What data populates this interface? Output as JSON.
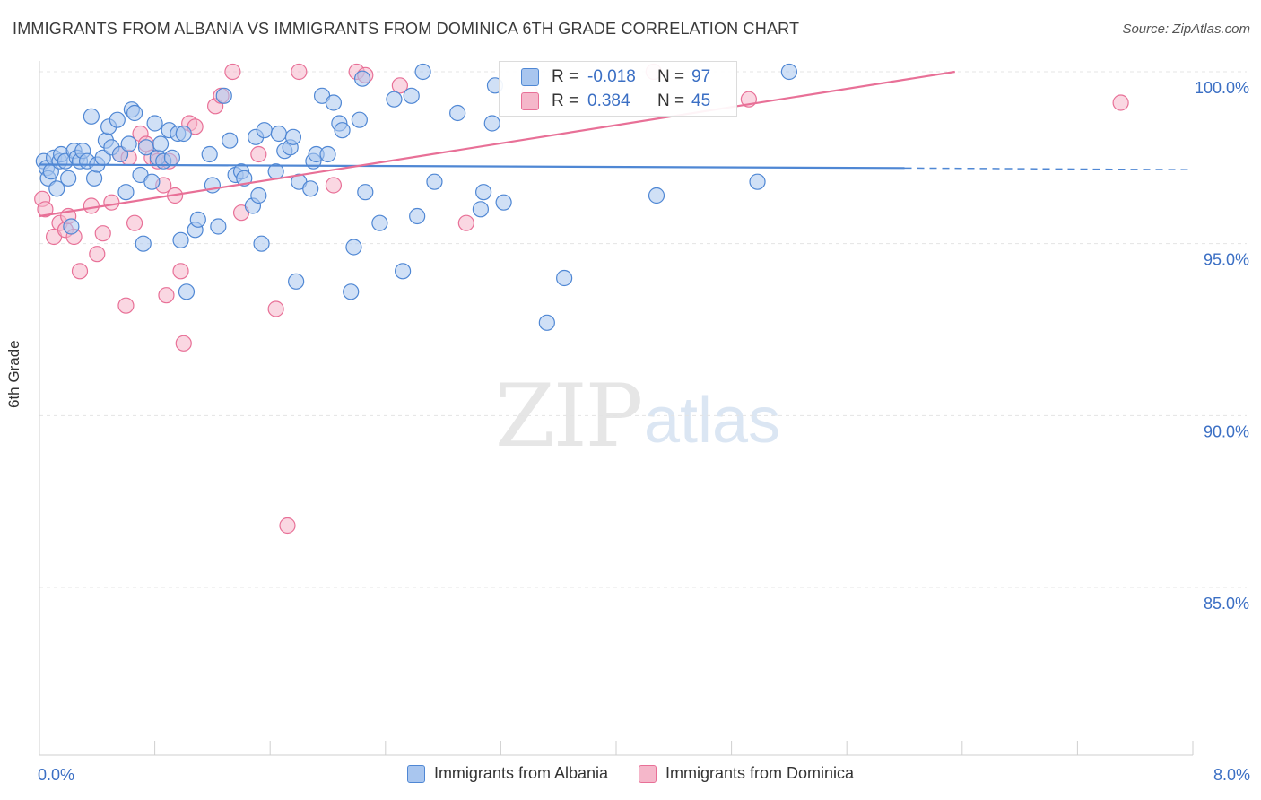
{
  "title": "IMMIGRANTS FROM ALBANIA VS IMMIGRANTS FROM DOMINICA 6TH GRADE CORRELATION CHART",
  "source": "Source: ZipAtlas.com",
  "watermark": {
    "zip": "ZIP",
    "atlas": "atlas"
  },
  "colors": {
    "blue": "#4f87d4",
    "blue_fill": "#a9c6ef",
    "pink": "#e87097",
    "pink_fill": "#f5b7ca",
    "tick_label": "#3b6fc4",
    "grid": "#e4e4e4"
  },
  "stats": [
    {
      "r_label": "R =",
      "r_value": "-0.018",
      "n_label": "N =",
      "n_value": "97"
    },
    {
      "r_label": "R =",
      "r_value": "0.384",
      "n_label": "N =",
      "n_value": "45"
    }
  ],
  "chart_data": {
    "type": "scatter",
    "title": "IMMIGRANTS FROM ALBANIA VS IMMIGRANTS FROM DOMINICA 6TH GRADE CORRELATION CHART",
    "xlabel": "",
    "ylabel": "6th Grade",
    "xlim": [
      0,
      8
    ],
    "ylim": [
      80.5,
      100.8
    ],
    "x_tick_labels": [
      {
        "value": 0,
        "label": "0.0%"
      },
      {
        "value": 8,
        "label": "8.0%"
      }
    ],
    "y_tick_labels": [
      {
        "value": 100,
        "label": "100.0%"
      },
      {
        "value": 95,
        "label": "95.0%"
      },
      {
        "value": 90,
        "label": "90.0%"
      },
      {
        "value": 85,
        "label": "85.0%"
      }
    ],
    "grid": true,
    "legend_position": "bottom",
    "series": [
      {
        "name": "Immigrants from Albania",
        "color": "#4f87d4",
        "points": [
          [
            0.03,
            97.4
          ],
          [
            0.05,
            97.2
          ],
          [
            0.06,
            96.9
          ],
          [
            0.08,
            97.1
          ],
          [
            0.1,
            97.5
          ],
          [
            0.12,
            96.6
          ],
          [
            0.14,
            97.4
          ],
          [
            0.15,
            97.6
          ],
          [
            0.18,
            97.4
          ],
          [
            0.2,
            96.9
          ],
          [
            0.22,
            95.5
          ],
          [
            0.24,
            97.7
          ],
          [
            0.26,
            97.5
          ],
          [
            0.28,
            97.4
          ],
          [
            0.3,
            97.7
          ],
          [
            0.33,
            97.4
          ],
          [
            0.36,
            98.7
          ],
          [
            0.38,
            96.9
          ],
          [
            0.4,
            97.3
          ],
          [
            0.44,
            97.5
          ],
          [
            0.46,
            98.0
          ],
          [
            0.48,
            98.4
          ],
          [
            0.5,
            97.8
          ],
          [
            0.54,
            98.6
          ],
          [
            0.56,
            97.6
          ],
          [
            0.6,
            96.5
          ],
          [
            0.62,
            97.9
          ],
          [
            0.64,
            98.9
          ],
          [
            0.66,
            98.8
          ],
          [
            0.7,
            97.0
          ],
          [
            0.72,
            95.0
          ],
          [
            0.74,
            97.8
          ],
          [
            0.78,
            96.8
          ],
          [
            0.8,
            98.5
          ],
          [
            0.82,
            97.5
          ],
          [
            0.84,
            97.9
          ],
          [
            0.86,
            97.4
          ],
          [
            0.9,
            98.3
          ],
          [
            0.92,
            97.5
          ],
          [
            0.96,
            98.2
          ],
          [
            0.98,
            95.1
          ],
          [
            1.0,
            98.2
          ],
          [
            1.02,
            93.6
          ],
          [
            1.08,
            95.4
          ],
          [
            1.1,
            95.7
          ],
          [
            1.18,
            97.6
          ],
          [
            1.2,
            96.7
          ],
          [
            1.24,
            95.5
          ],
          [
            1.28,
            99.3
          ],
          [
            1.32,
            98.0
          ],
          [
            1.36,
            97.0
          ],
          [
            1.4,
            97.1
          ],
          [
            1.42,
            96.9
          ],
          [
            1.48,
            96.1
          ],
          [
            1.5,
            98.1
          ],
          [
            1.52,
            96.4
          ],
          [
            1.54,
            95.0
          ],
          [
            1.56,
            98.3
          ],
          [
            1.64,
            97.1
          ],
          [
            1.66,
            98.2
          ],
          [
            1.7,
            97.7
          ],
          [
            1.74,
            97.8
          ],
          [
            1.76,
            98.1
          ],
          [
            1.78,
            93.9
          ],
          [
            1.8,
            96.8
          ],
          [
            1.88,
            96.6
          ],
          [
            1.9,
            97.4
          ],
          [
            1.92,
            97.6
          ],
          [
            1.96,
            99.3
          ],
          [
            2.0,
            97.6
          ],
          [
            2.04,
            99.1
          ],
          [
            2.08,
            98.5
          ],
          [
            2.1,
            98.3
          ],
          [
            2.16,
            93.6
          ],
          [
            2.18,
            94.9
          ],
          [
            2.22,
            98.6
          ],
          [
            2.24,
            99.8
          ],
          [
            2.26,
            96.5
          ],
          [
            2.36,
            95.6
          ],
          [
            2.46,
            99.2
          ],
          [
            2.52,
            94.2
          ],
          [
            2.58,
            99.3
          ],
          [
            2.62,
            95.8
          ],
          [
            2.66,
            100.0
          ],
          [
            2.74,
            96.8
          ],
          [
            2.9,
            98.8
          ],
          [
            3.06,
            96.0
          ],
          [
            3.08,
            96.5
          ],
          [
            3.14,
            98.5
          ],
          [
            3.16,
            99.6
          ],
          [
            3.22,
            96.2
          ],
          [
            3.52,
            92.7
          ],
          [
            3.64,
            94.0
          ],
          [
            4.28,
            96.4
          ],
          [
            4.98,
            96.8
          ],
          [
            5.2,
            100.0
          ]
        ]
      },
      {
        "name": "Immigrants from Dominica",
        "color": "#e87097",
        "points": [
          [
            0.02,
            96.3
          ],
          [
            0.04,
            96.0
          ],
          [
            0.1,
            95.2
          ],
          [
            0.14,
            95.6
          ],
          [
            0.18,
            95.4
          ],
          [
            0.2,
            95.8
          ],
          [
            0.24,
            95.2
          ],
          [
            0.28,
            94.2
          ],
          [
            0.36,
            96.1
          ],
          [
            0.4,
            94.7
          ],
          [
            0.44,
            95.3
          ],
          [
            0.5,
            96.2
          ],
          [
            0.56,
            97.6
          ],
          [
            0.6,
            93.2
          ],
          [
            0.62,
            97.5
          ],
          [
            0.66,
            95.6
          ],
          [
            0.7,
            98.2
          ],
          [
            0.74,
            97.9
          ],
          [
            0.78,
            97.5
          ],
          [
            0.82,
            97.4
          ],
          [
            0.86,
            96.7
          ],
          [
            0.88,
            93.5
          ],
          [
            0.9,
            97.4
          ],
          [
            0.94,
            96.4
          ],
          [
            0.98,
            94.2
          ],
          [
            1.0,
            92.1
          ],
          [
            1.04,
            98.5
          ],
          [
            1.08,
            98.4
          ],
          [
            1.22,
            99.0
          ],
          [
            1.26,
            99.3
          ],
          [
            1.34,
            100.0
          ],
          [
            1.4,
            95.9
          ],
          [
            1.52,
            97.6
          ],
          [
            1.64,
            93.1
          ],
          [
            1.72,
            86.8
          ],
          [
            1.8,
            100.0
          ],
          [
            2.04,
            96.7
          ],
          [
            2.2,
            100.0
          ],
          [
            2.26,
            99.9
          ],
          [
            2.5,
            99.6
          ],
          [
            2.96,
            95.6
          ],
          [
            3.4,
            99.4
          ],
          [
            4.26,
            100.0
          ],
          [
            4.92,
            99.2
          ],
          [
            7.5,
            99.1
          ]
        ]
      }
    ],
    "trendlines": [
      {
        "series": "Immigrants from Albania",
        "x_start": 0.0,
        "y_start": 97.3,
        "x_solid_end": 6.0,
        "y_solid_end": 97.2,
        "x_dashed_end": 8.0,
        "y_dashed_end": 97.15
      },
      {
        "series": "Immigrants from Dominica",
        "x_start": 0.0,
        "y_start": 95.8,
        "x_end": 6.35,
        "y_end": 100.0
      }
    ]
  },
  "legend": [
    {
      "label": "Immigrants from Albania"
    },
    {
      "label": "Immigrants from Dominica"
    }
  ]
}
